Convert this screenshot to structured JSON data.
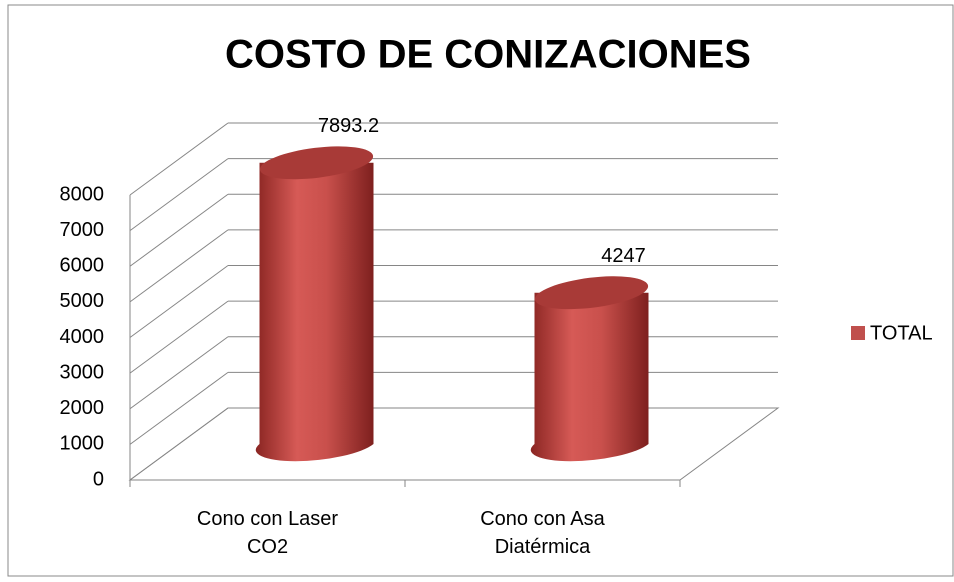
{
  "chart_data": {
    "type": "bar3d",
    "title": "COSTO DE CONIZACIONES",
    "categories": [
      "Cono con Laser CO2",
      "Cono con Asa Diatérmica"
    ],
    "series": [
      {
        "name": "TOTAL",
        "color": "#c0504d",
        "values": [
          7893.2,
          4247
        ]
      }
    ],
    "ylim": [
      0,
      8000
    ],
    "yticks": [
      0,
      1000,
      2000,
      3000,
      4000,
      5000,
      6000,
      7000,
      8000
    ],
    "grid": true,
    "legend": "right"
  }
}
